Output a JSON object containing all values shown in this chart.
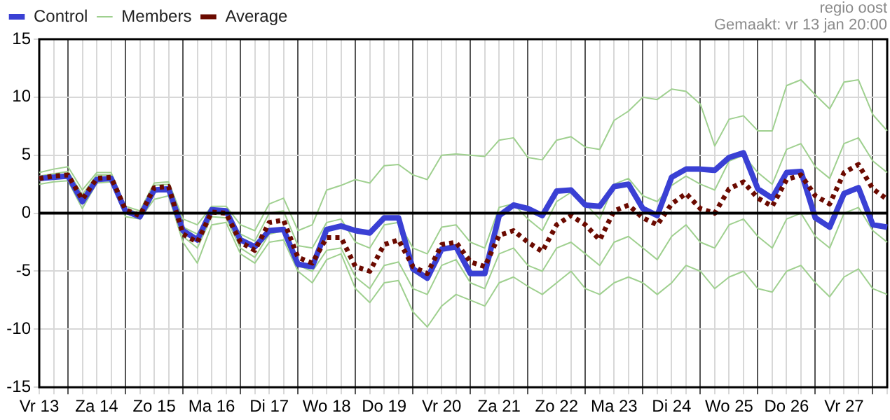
{
  "chart_data": {
    "type": "line",
    "categories": [
      "Vr 13",
      null,
      null,
      null,
      "Za 14",
      null,
      null,
      null,
      "Zo 15",
      null,
      null,
      null,
      "Ma 16",
      null,
      null,
      null,
      "Di 17",
      null,
      null,
      null,
      "Wo 18",
      null,
      null,
      null,
      "Do 19",
      null,
      null,
      null,
      "Vr 20",
      null,
      null,
      null,
      "Za 21",
      null,
      null,
      null,
      "Zo 22",
      null,
      null,
      null,
      "Ma 23",
      null,
      null,
      null,
      "Di 24",
      null,
      null,
      null,
      "Wo 25",
      null,
      null,
      null,
      "Do 26",
      null,
      null,
      null,
      "Vr 27",
      null,
      null,
      null
    ],
    "series": [
      {
        "name": "Members",
        "color": "#9fd08f",
        "values": [
          3.5,
          3.8,
          4.0,
          2.0,
          3.5,
          3.5,
          0.6,
          0.2,
          2.6,
          2.7,
          -0.5,
          -1.0,
          0.6,
          0.6,
          -1.0,
          -1.5,
          0.8,
          1.3,
          -1.5,
          -1.0,
          2.0,
          2.4,
          2.9,
          2.6,
          4.1,
          4.2,
          3.3,
          2.9,
          5.0,
          5.1,
          5.0,
          4.9,
          6.3,
          6.5,
          4.8,
          4.6,
          6.3,
          6.6,
          5.7,
          5.5,
          8.0,
          8.8,
          10.0,
          9.8,
          10.7,
          10.5,
          9.4,
          5.8,
          8.1,
          8.4,
          7.1,
          7.1,
          11.0,
          11.5,
          10.2,
          9.0,
          11.3,
          11.5,
          8.5,
          7.1
        ]
      },
      {
        "color": "#9fd08f",
        "values": [
          2.5,
          2.7,
          2.8,
          0.4,
          2.6,
          2.7,
          -0.3,
          -0.5,
          1.2,
          1.5,
          -2.5,
          -4.3,
          -1.0,
          -0.8,
          -3.5,
          -4.3,
          -2.5,
          -2.3,
          -5.0,
          -6.0,
          -4.0,
          -3.5,
          -6.5,
          -7.7,
          -6.0,
          -5.8,
          -8.5,
          -9.8,
          -8.0,
          -7.0,
          -7.5,
          -8.0,
          -6.0,
          -5.5,
          -6.3,
          -7.0,
          -6.0,
          -5.0,
          -6.5,
          -7.0,
          -6.0,
          -5.5,
          -6.0,
          -7.0,
          -6.0,
          -4.5,
          -5.0,
          -6.5,
          -5.5,
          -5.0,
          -6.5,
          -6.8,
          -5.0,
          -4.5,
          -6.0,
          -7.2,
          -5.5,
          -4.8,
          -6.5,
          -7.0
        ]
      },
      {
        "color": "#9fd08f",
        "values": [
          3.2,
          3.4,
          3.6,
          1.6,
          3.3,
          3.3,
          0.4,
          0.0,
          2.4,
          2.5,
          -1.2,
          -1.8,
          0.4,
          0.3,
          -1.8,
          -2.4,
          0.0,
          0.2,
          -2.8,
          -3.0,
          -0.8,
          -0.5,
          -2.5,
          -3.0,
          -1.0,
          -0.8,
          -3.0,
          -3.5,
          -1.2,
          -1.0,
          -2.5,
          -3.0,
          0.5,
          0.8,
          -0.5,
          -1.5,
          1.0,
          1.8,
          0.8,
          -0.5,
          2.5,
          3.0,
          1.5,
          1.0,
          2.4,
          3.2,
          2.5,
          2.0,
          4.5,
          5.0,
          3.5,
          2.5,
          5.5,
          6.0,
          4.0,
          3.0,
          6.0,
          6.5,
          4.5,
          3.5
        ]
      },
      {
        "color": "#9fd08f",
        "values": [
          2.8,
          3.0,
          3.0,
          0.8,
          2.8,
          2.9,
          0.0,
          -0.4,
          1.8,
          2.0,
          -2.0,
          -3.0,
          -0.3,
          -0.4,
          -3.0,
          -3.8,
          -1.8,
          -1.5,
          -4.5,
          -5.0,
          -3.2,
          -3.0,
          -5.5,
          -6.5,
          -4.5,
          -4.2,
          -6.5,
          -7.0,
          -4.5,
          -4.0,
          -6.0,
          -6.5,
          -3.5,
          -3.0,
          -4.5,
          -5.0,
          -3.0,
          -2.5,
          -3.5,
          -4.5,
          -2.5,
          -2.0,
          -3.0,
          -4.0,
          -2.0,
          -1.0,
          -2.5,
          -3.0,
          -1.0,
          -0.5,
          -2.0,
          -3.0,
          -0.5,
          0.0,
          -2.0,
          -3.0,
          0.0,
          0.5,
          -1.5,
          -2.5
        ]
      },
      {
        "name": "Control",
        "color": "#3a40d4",
        "values": [
          3.0,
          3.1,
          3.2,
          1.0,
          2.9,
          3.0,
          0.2,
          -0.3,
          2.0,
          2.1,
          -1.5,
          -2.3,
          0.3,
          0.2,
          -2.3,
          -2.9,
          -1.5,
          -1.4,
          -4.4,
          -4.6,
          -1.4,
          -1.1,
          -1.5,
          -1.7,
          -0.4,
          -0.4,
          -4.8,
          -5.6,
          -3.1,
          -2.9,
          -5.2,
          -5.2,
          -0.2,
          0.7,
          0.4,
          -0.2,
          1.9,
          2.0,
          0.7,
          0.6,
          2.3,
          2.5,
          0.4,
          -0.2,
          3.1,
          3.8,
          3.8,
          3.7,
          4.8,
          5.2,
          2.1,
          1.3,
          3.5,
          3.6,
          -0.4,
          -1.2,
          1.7,
          2.2,
          -1.0,
          -1.2
        ]
      },
      {
        "name": "Average",
        "color": "#6b0a00",
        "line_style": "dotted",
        "values": [
          3.0,
          3.2,
          3.3,
          1.2,
          3.0,
          3.1,
          0.3,
          -0.2,
          2.2,
          2.3,
          -1.8,
          -2.5,
          0.1,
          0.0,
          -2.5,
          -3.2,
          -0.8,
          -0.6,
          -3.8,
          -4.3,
          -2.1,
          -2.1,
          -4.6,
          -5.0,
          -2.7,
          -2.3,
          -4.6,
          -5.2,
          -2.7,
          -2.5,
          -4.2,
          -4.6,
          -1.9,
          -1.5,
          -2.5,
          -3.3,
          -1.0,
          -0.2,
          -1.0,
          -2.3,
          0.2,
          0.7,
          -0.4,
          -1.0,
          0.8,
          1.7,
          0.4,
          0.0,
          2.1,
          2.7,
          1.3,
          0.6,
          2.9,
          3.3,
          1.5,
          0.8,
          3.5,
          4.2,
          2.1,
          1.2
        ]
      }
    ],
    "ylim": [
      -15,
      15
    ],
    "yticks": [
      -15,
      -10,
      -5,
      0,
      5,
      10,
      15
    ],
    "grid": true,
    "legend": "top left",
    "marker": "none",
    "ref_lines": [
      {
        "axis": "y",
        "value": 0,
        "color": "#000000"
      }
    ],
    "annotations": [
      "regio oost",
      "Gemaakt: vr 13 jan 20:00"
    ]
  }
}
